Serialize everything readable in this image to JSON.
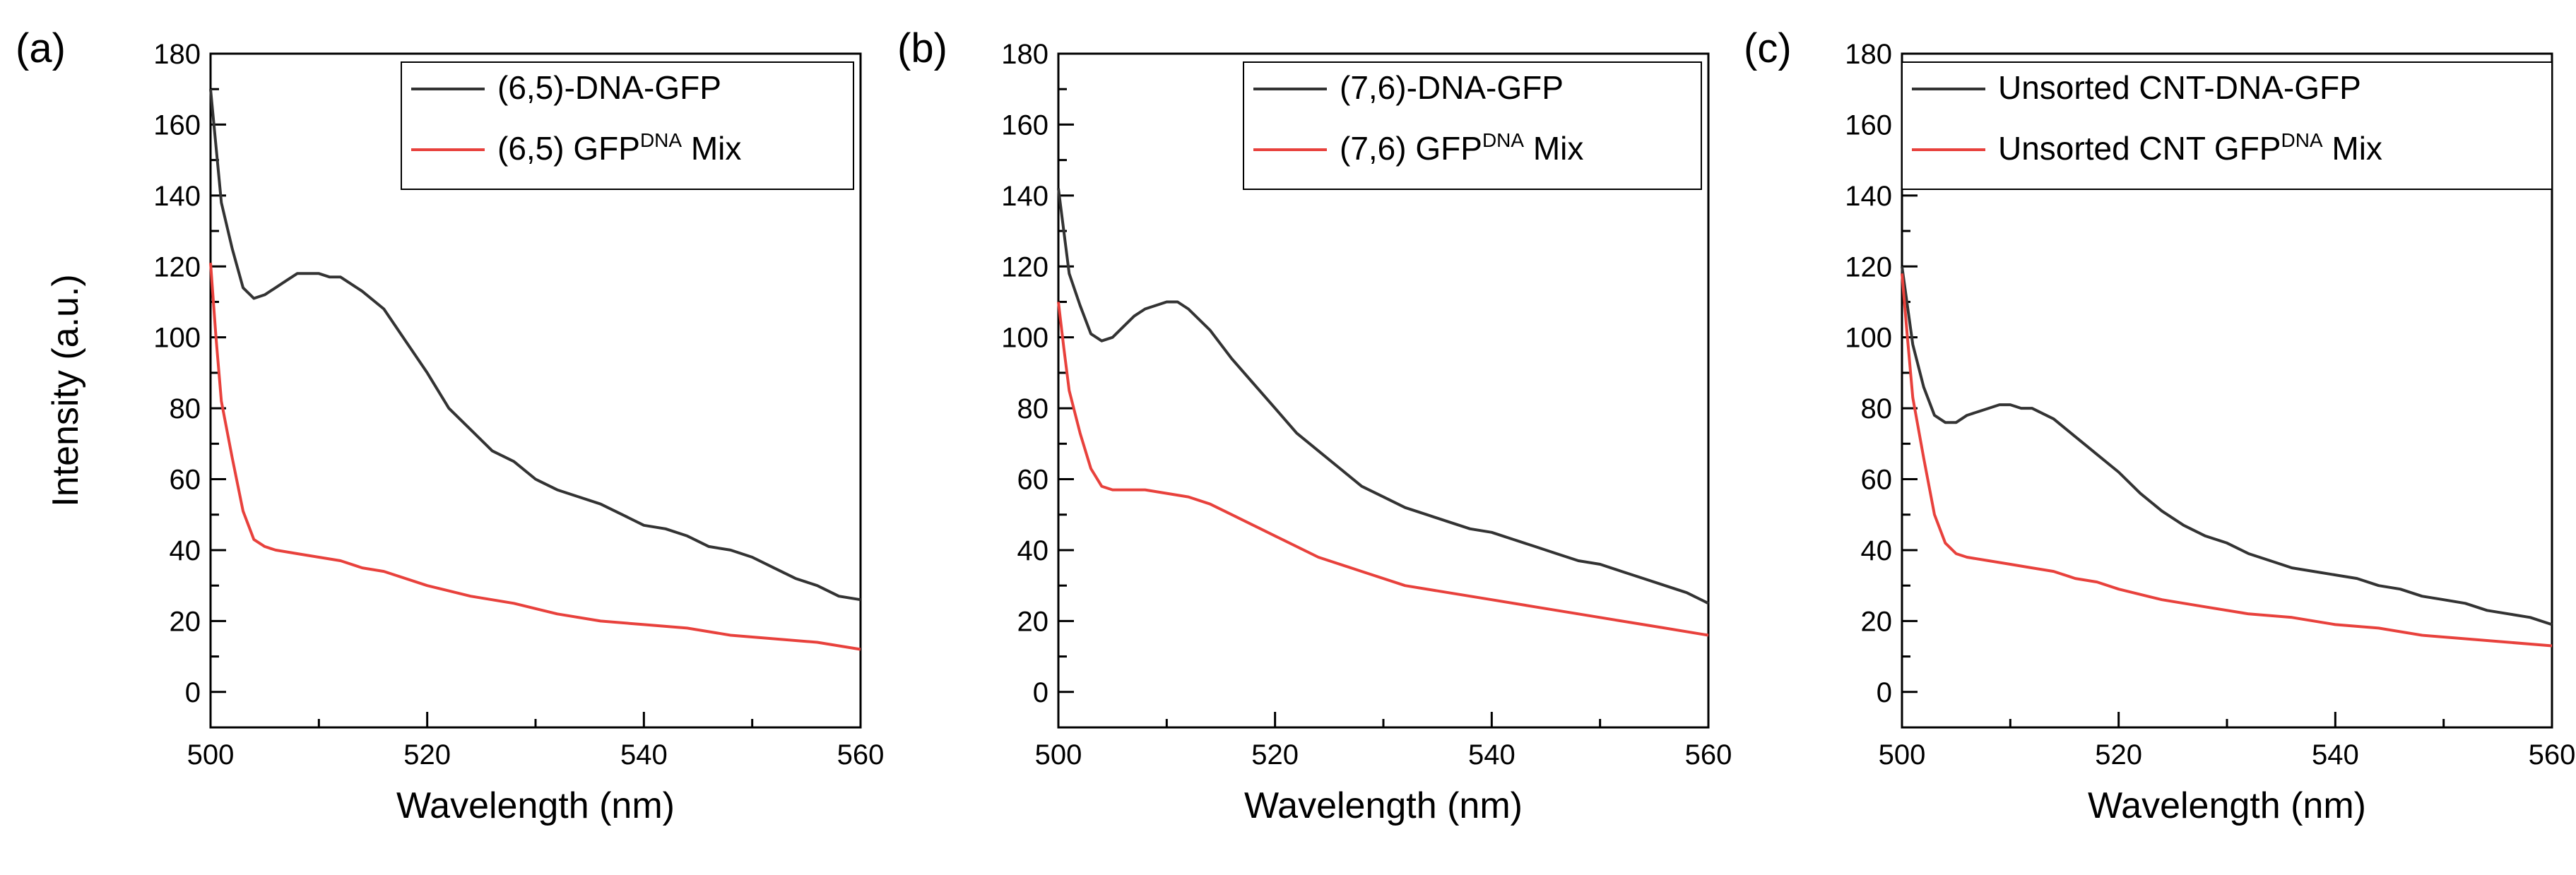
{
  "figure": {
    "panel_letters": [
      "(a)",
      "(b)",
      "(c)"
    ],
    "colors": {
      "gray_series": "#333333",
      "red_series": "#e8413c",
      "axis": "#000000"
    }
  },
  "chart_data": [
    {
      "type": "line",
      "panel": "(a)",
      "xlabel": "Wavelength (nm)",
      "ylabel": "Intensity (a.u.)",
      "xlim": [
        500,
        560
      ],
      "ylim": [
        -10,
        180
      ],
      "x_ticks": [
        500,
        520,
        540,
        560
      ],
      "y_ticks": [
        0,
        20,
        40,
        60,
        80,
        100,
        120,
        140,
        160,
        180
      ],
      "x_tick_labels": [
        "500",
        "520",
        "540",
        "560"
      ],
      "y_tick_labels": [
        "0",
        "20",
        "40",
        "60",
        "80",
        "100",
        "120",
        "140",
        "160",
        "180"
      ],
      "legend_position": "top-right",
      "series": [
        {
          "name": "(6,5)-DNA-GFP",
          "legend_main": "(6,5)-DNA-GFP",
          "legend_sup": "",
          "legend_suffix": "",
          "color": "#333333",
          "x": [
            500,
            501,
            502,
            503,
            504,
            505,
            506,
            507,
            508,
            509,
            510,
            511,
            512,
            514,
            516,
            518,
            520,
            522,
            524,
            526,
            528,
            530,
            532,
            534,
            536,
            538,
            540,
            542,
            544,
            546,
            548,
            550,
            552,
            554,
            556,
            558,
            560
          ],
          "y": [
            170,
            138,
            125,
            114,
            111,
            112,
            114,
            116,
            118,
            118,
            118,
            117,
            117,
            113,
            108,
            99,
            90,
            80,
            74,
            68,
            65,
            60,
            57,
            55,
            53,
            50,
            47,
            46,
            44,
            41,
            40,
            38,
            35,
            32,
            30,
            27,
            26
          ]
        },
        {
          "name": "(6,5) GFPDNA Mix",
          "legend_main": "(6,5) GFP",
          "legend_sup": "DNA",
          "legend_suffix": " Mix",
          "color": "#e8413c",
          "x": [
            500,
            500.5,
            501,
            502,
            503,
            504,
            505,
            506,
            508,
            510,
            512,
            514,
            516,
            520,
            524,
            528,
            532,
            536,
            540,
            544,
            548,
            552,
            556,
            560
          ],
          "y": [
            121,
            100,
            82,
            66,
            51,
            43,
            41,
            40,
            39,
            38,
            37,
            35,
            34,
            30,
            27,
            25,
            22,
            20,
            19,
            18,
            16,
            15,
            14,
            12
          ]
        }
      ]
    },
    {
      "type": "line",
      "panel": "(b)",
      "xlabel": "Wavelength (nm)",
      "ylabel": "",
      "xlim": [
        500,
        560
      ],
      "ylim": [
        -10,
        180
      ],
      "x_ticks": [
        500,
        520,
        540,
        560
      ],
      "y_ticks": [
        0,
        20,
        40,
        60,
        80,
        100,
        120,
        140,
        160,
        180
      ],
      "x_tick_labels": [
        "500",
        "520",
        "540",
        "560"
      ],
      "y_tick_labels": [
        "0",
        "20",
        "40",
        "60",
        "80",
        "100",
        "120",
        "140",
        "160",
        "180"
      ],
      "legend_position": "top-right",
      "series": [
        {
          "name": "(7,6)-DNA-GFP",
          "legend_main": "(7,6)-DNA-GFP",
          "legend_sup": "",
          "legend_suffix": "",
          "color": "#333333",
          "x": [
            500,
            501,
            502,
            503,
            504,
            505,
            506,
            507,
            508,
            509,
            510,
            511,
            512,
            514,
            516,
            518,
            520,
            522,
            524,
            526,
            528,
            530,
            532,
            534,
            536,
            538,
            540,
            542,
            544,
            546,
            548,
            550,
            552,
            554,
            556,
            558,
            560
          ],
          "y": [
            142,
            118,
            109,
            101,
            99,
            100,
            103,
            106,
            108,
            109,
            110,
            110,
            108,
            102,
            94,
            87,
            80,
            73,
            68,
            63,
            58,
            55,
            52,
            50,
            48,
            46,
            45,
            43,
            41,
            39,
            37,
            36,
            34,
            32,
            30,
            28,
            25
          ]
        },
        {
          "name": "(7,6) GFPDNA Mix",
          "legend_main": "(7,6) GFP",
          "legend_sup": "DNA",
          "legend_suffix": " Mix",
          "color": "#e8413c",
          "x": [
            500,
            500.5,
            501,
            502,
            503,
            504,
            505,
            506,
            508,
            510,
            512,
            514,
            516,
            518,
            520,
            524,
            528,
            532,
            536,
            540,
            544,
            548,
            552,
            556,
            560
          ],
          "y": [
            110,
            97,
            85,
            73,
            63,
            58,
            57,
            57,
            57,
            56,
            55,
            53,
            50,
            47,
            44,
            38,
            34,
            30,
            28,
            26,
            24,
            22,
            20,
            18,
            16
          ]
        }
      ]
    },
    {
      "type": "line",
      "panel": "(c)",
      "xlabel": "Wavelength (nm)",
      "ylabel": "",
      "xlim": [
        500,
        560
      ],
      "ylim": [
        -10,
        180
      ],
      "x_ticks": [
        500,
        520,
        540,
        560
      ],
      "y_ticks": [
        0,
        20,
        40,
        60,
        80,
        100,
        120,
        140,
        160,
        180
      ],
      "x_tick_labels": [
        "500",
        "520",
        "540",
        "560"
      ],
      "y_tick_labels": [
        "0",
        "20",
        "40",
        "60",
        "80",
        "100",
        "120",
        "140",
        "160",
        "180"
      ],
      "legend_position": "top-right",
      "series": [
        {
          "name": "Unsorted CNT-DNA-GFP",
          "legend_main": "Unsorted CNT-DNA-GFP",
          "legend_sup": "",
          "legend_suffix": "",
          "color": "#333333",
          "x": [
            500,
            501,
            502,
            503,
            504,
            505,
            506,
            507,
            508,
            509,
            510,
            511,
            512,
            514,
            516,
            518,
            520,
            522,
            524,
            526,
            528,
            530,
            532,
            534,
            536,
            538,
            540,
            542,
            544,
            546,
            548,
            550,
            552,
            554,
            556,
            558,
            560
          ],
          "y": [
            120,
            98,
            86,
            78,
            76,
            76,
            78,
            79,
            80,
            81,
            81,
            80,
            80,
            77,
            72,
            67,
            62,
            56,
            51,
            47,
            44,
            42,
            39,
            37,
            35,
            34,
            33,
            32,
            30,
            29,
            27,
            26,
            25,
            23,
            22,
            21,
            19
          ]
        },
        {
          "name": "Unsorted CNT GFPDNA Mix",
          "legend_main": "Unsorted CNT GFP",
          "legend_sup": "DNA",
          "legend_suffix": " Mix",
          "color": "#e8413c",
          "x": [
            500,
            500.5,
            501,
            502,
            503,
            504,
            505,
            506,
            508,
            510,
            512,
            514,
            516,
            518,
            520,
            524,
            528,
            532,
            536,
            540,
            544,
            548,
            552,
            556,
            560
          ],
          "y": [
            118,
            100,
            83,
            66,
            50,
            42,
            39,
            38,
            37,
            36,
            35,
            34,
            32,
            31,
            29,
            26,
            24,
            22,
            21,
            19,
            18,
            16,
            15,
            14,
            13
          ]
        }
      ]
    }
  ]
}
